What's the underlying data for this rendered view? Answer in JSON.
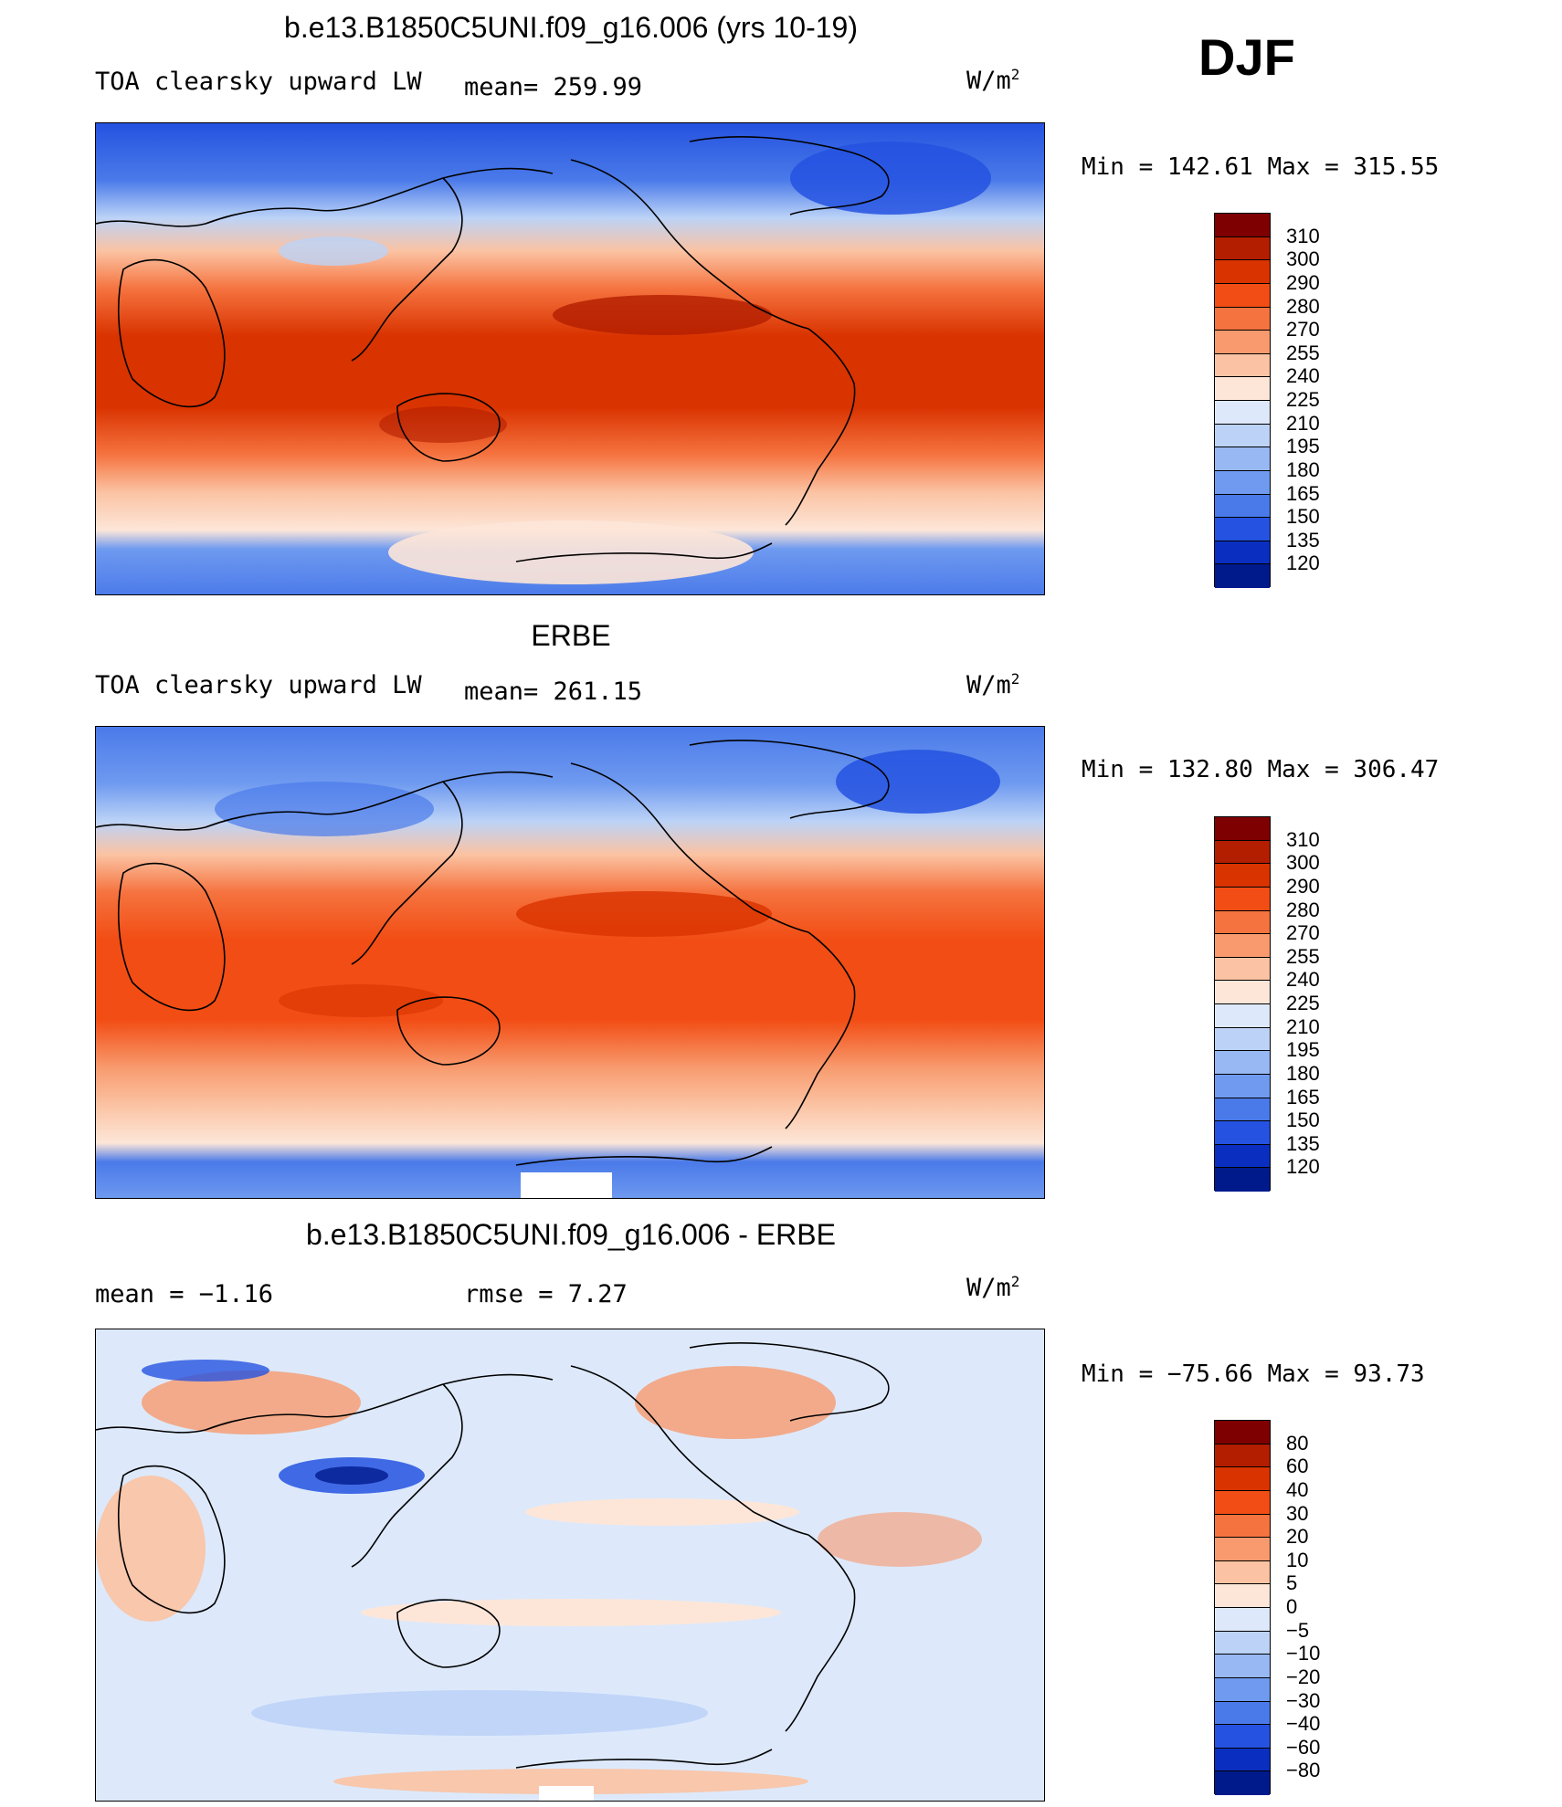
{
  "season": "DJF",
  "panels": [
    {
      "title": "b.e13.B1850C5UNI.f09_g16.006 (yrs 10-19)",
      "left_label": "TOA clearsky upward LW",
      "mid_label": "mean= 259.99",
      "units": "W/m",
      "units_sup": "2",
      "minmax": "Min = 142.61 Max = 315.55",
      "colorbar_labels": [
        "310",
        "300",
        "290",
        "280",
        "270",
        "255",
        "240",
        "225",
        "210",
        "195",
        "180",
        "165",
        "150",
        "135",
        "120"
      ]
    },
    {
      "title": "ERBE",
      "left_label": "TOA clearsky upward LW",
      "mid_label": "mean= 261.15",
      "units": "W/m",
      "units_sup": "2",
      "minmax": "Min = 132.80 Max = 306.47",
      "colorbar_labels": [
        "310",
        "300",
        "290",
        "280",
        "270",
        "255",
        "240",
        "225",
        "210",
        "195",
        "180",
        "165",
        "150",
        "135",
        "120"
      ]
    },
    {
      "title": "b.e13.B1850C5UNI.f09_g16.006 - ERBE",
      "left_label": "mean =   −1.16",
      "mid_label": "rmse =    7.27",
      "units": "W/m",
      "units_sup": "2",
      "minmax": "Min = −75.66 Max =  93.73",
      "colorbar_labels": [
        "80",
        "60",
        "40",
        "30",
        "20",
        "10",
        "5",
        "0",
        "−5",
        "−10",
        "−20",
        "−30",
        "−40",
        "−60",
        "−80"
      ]
    }
  ],
  "colors": {
    "colorbar": [
      "#7f0000",
      "#b31e00",
      "#d93300",
      "#f24d14",
      "#f5733f",
      "#f89a6e",
      "#fbc3a3",
      "#fde6d8",
      "#dde9fb",
      "#bcd3f7",
      "#97b8f2",
      "#6f9af0",
      "#4a7ae9",
      "#2552e0",
      "#0a2fc0",
      "#001a8c"
    ]
  }
}
